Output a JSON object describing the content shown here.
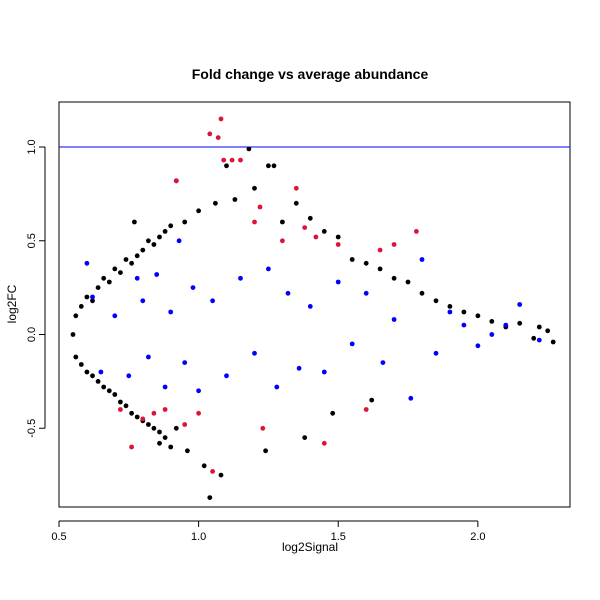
{
  "chart_data": {
    "type": "scatter",
    "title": "Fold change vs average abundance",
    "xlabel": "log2Signal",
    "ylabel": "log2FC",
    "xlim": [
      0.5,
      2.33
    ],
    "ylim": [
      -0.92,
      1.24
    ],
    "x_ticks": [
      0.5,
      1.0,
      1.5,
      2.0
    ],
    "x_tick_labels": [
      "0.5",
      "1.0",
      "1.5",
      "2.0"
    ],
    "y_ticks": [
      -0.5,
      0.0,
      0.5,
      1.0
    ],
    "y_tick_labels": [
      "-0.5",
      "0.0",
      "0.5",
      "1.0"
    ],
    "grid": false,
    "reference_line": {
      "y": 1.0,
      "color": "#0000ff"
    },
    "colors": {
      "black": "#000000",
      "blue": "#0000ff",
      "red": "#dc143c"
    },
    "series": [
      {
        "color": "black",
        "points": [
          [
            0.55,
            0.0
          ],
          [
            0.56,
            0.1
          ],
          [
            0.56,
            -0.12
          ],
          [
            0.58,
            0.15
          ],
          [
            0.58,
            -0.16
          ],
          [
            0.6,
            0.2
          ],
          [
            0.6,
            -0.2
          ],
          [
            0.62,
            0.18
          ],
          [
            0.62,
            -0.22
          ],
          [
            0.64,
            0.25
          ],
          [
            0.64,
            -0.25
          ],
          [
            0.66,
            0.3
          ],
          [
            0.66,
            -0.28
          ],
          [
            0.68,
            0.28
          ],
          [
            0.68,
            -0.3
          ],
          [
            0.7,
            0.35
          ],
          [
            0.7,
            -0.32
          ],
          [
            0.72,
            0.33
          ],
          [
            0.72,
            -0.36
          ],
          [
            0.74,
            0.4
          ],
          [
            0.74,
            -0.38
          ],
          [
            0.76,
            0.38
          ],
          [
            0.76,
            -0.42
          ],
          [
            0.77,
            0.6
          ],
          [
            0.78,
            0.42
          ],
          [
            0.78,
            -0.44
          ],
          [
            0.8,
            0.45
          ],
          [
            0.8,
            -0.46
          ],
          [
            0.82,
            0.5
          ],
          [
            0.82,
            -0.48
          ],
          [
            0.84,
            0.48
          ],
          [
            0.84,
            -0.5
          ],
          [
            0.86,
            0.52
          ],
          [
            0.86,
            -0.52
          ],
          [
            0.86,
            -0.58
          ],
          [
            0.88,
            0.55
          ],
          [
            0.88,
            -0.55
          ],
          [
            0.9,
            0.58
          ],
          [
            0.9,
            -0.6
          ],
          [
            0.92,
            0.82
          ],
          [
            0.92,
            -0.5
          ],
          [
            0.95,
            0.6
          ],
          [
            0.96,
            -0.62
          ],
          [
            1.0,
            0.66
          ],
          [
            1.02,
            -0.7
          ],
          [
            1.04,
            -0.87
          ],
          [
            1.06,
            0.7
          ],
          [
            1.08,
            -0.75
          ],
          [
            1.1,
            0.9
          ],
          [
            1.13,
            0.72
          ],
          [
            1.18,
            0.99
          ],
          [
            1.2,
            0.78
          ],
          [
            1.25,
            0.9
          ],
          [
            1.27,
            0.9
          ],
          [
            1.24,
            -0.62
          ],
          [
            1.3,
            0.6
          ],
          [
            1.35,
            0.7
          ],
          [
            1.4,
            0.62
          ],
          [
            1.38,
            -0.55
          ],
          [
            1.45,
            0.55
          ],
          [
            1.48,
            -0.42
          ],
          [
            1.5,
            0.52
          ],
          [
            1.55,
            0.4
          ],
          [
            1.6,
            0.38
          ],
          [
            1.62,
            -0.35
          ],
          [
            1.65,
            0.35
          ],
          [
            1.7,
            0.3
          ],
          [
            1.75,
            0.28
          ],
          [
            1.8,
            0.22
          ],
          [
            1.85,
            0.18
          ],
          [
            1.9,
            0.15
          ],
          [
            1.95,
            0.12
          ],
          [
            2.0,
            0.1
          ],
          [
            2.05,
            0.07
          ],
          [
            2.1,
            0.04
          ],
          [
            2.15,
            0.06
          ],
          [
            2.2,
            -0.02
          ],
          [
            2.25,
            0.02
          ],
          [
            2.27,
            -0.04
          ],
          [
            2.22,
            0.04
          ]
        ]
      },
      {
        "color": "blue",
        "points": [
          [
            0.6,
            0.38
          ],
          [
            0.62,
            0.2
          ],
          [
            0.65,
            -0.2
          ],
          [
            0.7,
            0.1
          ],
          [
            0.75,
            -0.22
          ],
          [
            0.78,
            0.3
          ],
          [
            0.8,
            0.18
          ],
          [
            0.82,
            -0.12
          ],
          [
            0.85,
            0.32
          ],
          [
            0.88,
            -0.28
          ],
          [
            0.9,
            0.12
          ],
          [
            0.93,
            0.5
          ],
          [
            0.95,
            -0.15
          ],
          [
            0.98,
            0.25
          ],
          [
            1.0,
            -0.3
          ],
          [
            1.05,
            0.18
          ],
          [
            1.1,
            -0.22
          ],
          [
            1.15,
            0.3
          ],
          [
            1.2,
            -0.1
          ],
          [
            1.25,
            0.35
          ],
          [
            1.28,
            -0.28
          ],
          [
            1.32,
            0.22
          ],
          [
            1.36,
            -0.18
          ],
          [
            1.4,
            0.15
          ],
          [
            1.45,
            -0.2
          ],
          [
            1.5,
            0.28
          ],
          [
            1.55,
            -0.05
          ],
          [
            1.6,
            0.22
          ],
          [
            1.66,
            -0.15
          ],
          [
            1.7,
            0.08
          ],
          [
            1.76,
            -0.34
          ],
          [
            1.8,
            0.4
          ],
          [
            1.85,
            -0.1
          ],
          [
            1.9,
            0.12
          ],
          [
            1.95,
            0.05
          ],
          [
            2.0,
            -0.06
          ],
          [
            2.05,
            0.0
          ],
          [
            2.1,
            0.05
          ],
          [
            2.15,
            0.16
          ],
          [
            2.22,
            -0.03
          ]
        ]
      },
      {
        "color": "red",
        "points": [
          [
            0.72,
            -0.4
          ],
          [
            0.76,
            -0.6
          ],
          [
            0.8,
            -0.45
          ],
          [
            0.84,
            -0.42
          ],
          [
            0.88,
            -0.4
          ],
          [
            0.92,
            0.82
          ],
          [
            0.95,
            -0.48
          ],
          [
            1.0,
            -0.42
          ],
          [
            1.04,
            1.07
          ],
          [
            1.05,
            -0.73
          ],
          [
            1.07,
            1.05
          ],
          [
            1.08,
            1.15
          ],
          [
            1.09,
            0.93
          ],
          [
            1.12,
            0.93
          ],
          [
            1.15,
            0.93
          ],
          [
            1.2,
            0.6
          ],
          [
            1.22,
            0.68
          ],
          [
            1.23,
            -0.5
          ],
          [
            1.3,
            0.5
          ],
          [
            1.35,
            0.78
          ],
          [
            1.38,
            0.57
          ],
          [
            1.42,
            0.52
          ],
          [
            1.45,
            -0.58
          ],
          [
            1.5,
            0.48
          ],
          [
            1.6,
            -0.4
          ],
          [
            1.65,
            0.45
          ],
          [
            1.7,
            0.48
          ],
          [
            1.78,
            0.55
          ]
        ]
      }
    ]
  }
}
